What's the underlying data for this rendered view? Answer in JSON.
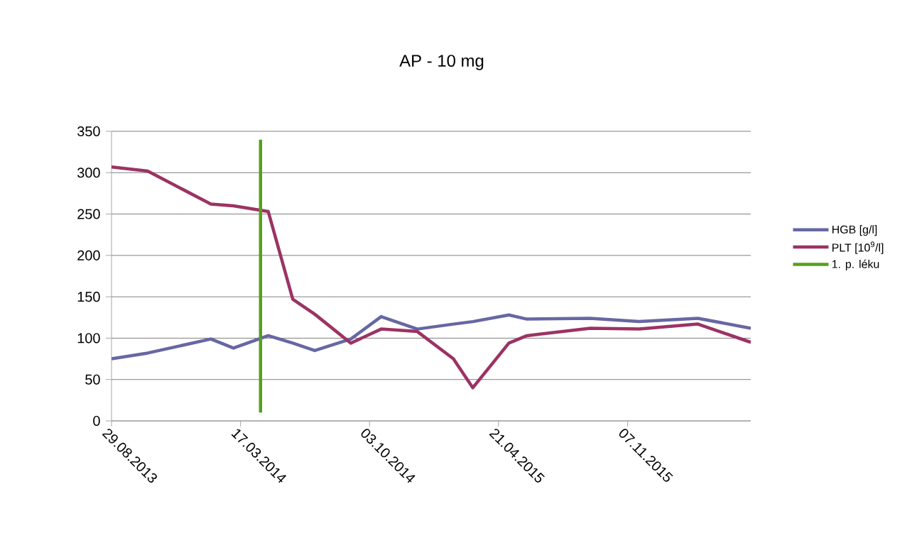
{
  "chart_data": {
    "type": "line",
    "title": "AP - 10 mg",
    "x": [
      "2013-08-29",
      "2013-10-24",
      "2014-01-30",
      "2014-03-06",
      "2014-04-29",
      "2014-06-06",
      "2014-07-10",
      "2014-09-04",
      "2014-10-21",
      "2014-12-16",
      "2015-02-10",
      "2015-03-12",
      "2015-05-07",
      "2015-06-04",
      "2015-09-10",
      "2015-11-25",
      "2016-02-24",
      "2016-05-16"
    ],
    "series": [
      {
        "name": "HGB [g/l]",
        "color": "#6667a3",
        "values": [
          75,
          82,
          99,
          88,
          103,
          94,
          85,
          99,
          126,
          111,
          117,
          120,
          128,
          123,
          124,
          120,
          124,
          112
        ]
      },
      {
        "name": "PLT [10$^{9}$/l]",
        "color": "#9b3363",
        "values": [
          307,
          302,
          262,
          260,
          253,
          147,
          129,
          94,
          111,
          108,
          75,
          40,
          94,
          103,
          112,
          111,
          117,
          95
        ]
      },
      {
        "name": "1. p. léku",
        "color": "#56a01c",
        "x": [
          "2014-04-17",
          "2014-04-17"
        ],
        "values": [
          10,
          340
        ]
      }
    ],
    "xlim": [
      "2013-08-29",
      "2016-05-16"
    ],
    "xticks": [
      {
        "value": "2013-08-29",
        "label": "29.08.2013"
      },
      {
        "value": "2014-03-17",
        "label": "17.03.2014"
      },
      {
        "value": "2014-10-03",
        "label": "03.10.2014"
      },
      {
        "value": "2015-04-21",
        "label": "21.04.2015"
      },
      {
        "value": "2015-11-07",
        "label": "07.11.2015"
      }
    ],
    "ylim": [
      0,
      350
    ],
    "yticks": [
      0,
      50,
      100,
      150,
      200,
      250,
      300,
      350
    ],
    "grid": "y",
    "legend": "right",
    "marker": "none",
    "line_style": "solid"
  }
}
